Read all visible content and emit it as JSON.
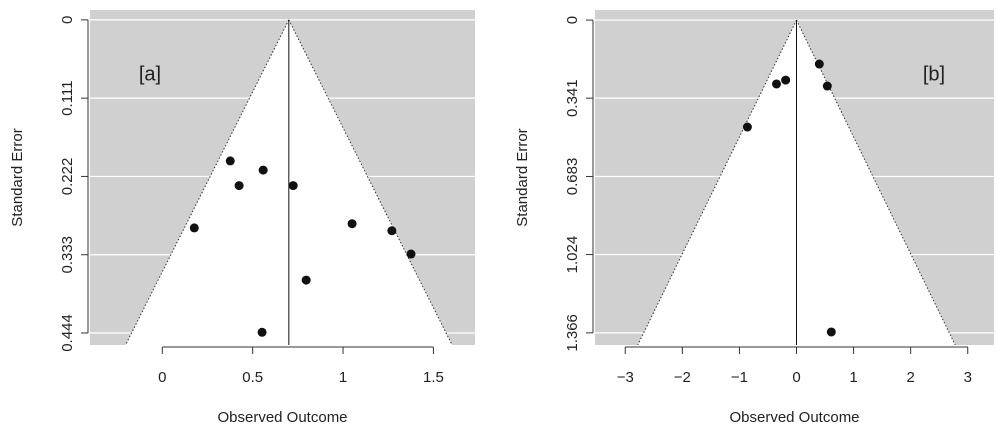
{
  "chart_data": [
    {
      "type": "funnel",
      "x_label": "Observed Outcome",
      "y_label": "Standard Error",
      "annotation": "[a]",
      "center": 0.7,
      "funnel_multiplier": 1.96,
      "color": "#111111",
      "background": "#d0d0d0",
      "grid": true,
      "x": [
        0.376,
        0.558,
        0.425,
        0.724,
        0.177,
        1.05,
        1.27,
        1.376,
        0.796,
        0.552
      ],
      "y": [
        0.2,
        0.213,
        0.235,
        0.235,
        0.295,
        0.289,
        0.299,
        0.332,
        0.369,
        0.443
      ],
      "xlim": [
        -0.4,
        1.73
      ],
      "xticks": [
        0,
        0.5,
        1,
        1.5
      ],
      "ylim": [
        0.461,
        -0.014
      ],
      "yticks": [
        0,
        0.111,
        0.222,
        0.333,
        0.444
      ]
    },
    {
      "type": "funnel",
      "x_label": "Observed Outcome",
      "y_label": "Standard Error",
      "annotation": "[b]",
      "center": 0,
      "funnel_multiplier": 1.96,
      "color": "#111111",
      "background": "#d0d0d0",
      "grid": true,
      "x": [
        0.4,
        -0.19,
        -0.35,
        0.54,
        -0.86,
        0.61
      ],
      "y": [
        0.192,
        0.262,
        0.279,
        0.288,
        0.467,
        1.362
      ],
      "xlim": [
        -3.53,
        3.46
      ],
      "xticks": [
        {
          "value": -3,
          "label": "−3"
        },
        {
          "value": -2,
          "label": "−2"
        },
        {
          "value": -1,
          "label": "−1"
        },
        0,
        1,
        2,
        3
      ],
      "ylim": [
        1.419,
        -0.044
      ],
      "yticks": [
        0,
        0.341,
        0.683,
        1.024,
        1.366
      ]
    }
  ]
}
